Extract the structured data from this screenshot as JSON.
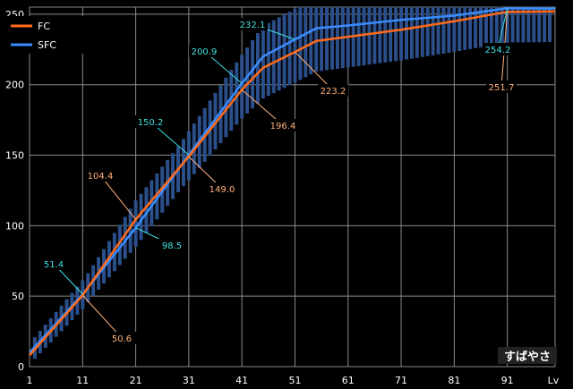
{
  "chart_data": {
    "type": "line",
    "xlim": [
      1,
      100
    ],
    "ylim": [
      0,
      255
    ],
    "xticks": [
      1,
      11,
      21,
      31,
      41,
      51,
      61,
      71,
      81,
      91
    ],
    "xtick_last_label": "Lv",
    "yticks": [
      0,
      50,
      100,
      150,
      200,
      250
    ],
    "grid": true,
    "legend_position": "top-left",
    "colors": {
      "background": "#000000",
      "grid": "#8a8a8a",
      "fc": "#ff6a1a",
      "sfc": "#3a8cff",
      "bars": "#2b4f8a",
      "fc_label": "#ffb07a",
      "sfc_label": "#40e0e0"
    },
    "series": [
      {
        "name": "FC",
        "x": [
          1,
          11,
          21,
          31,
          41,
          45,
          51,
          55,
          61,
          71,
          81,
          91,
          100
        ],
        "y": [
          8,
          50.6,
          104.4,
          149.0,
          196.4,
          212,
          223.2,
          231,
          234,
          239,
          245,
          251.7,
          252
        ]
      },
      {
        "name": "SFC",
        "x": [
          1,
          11,
          21,
          31,
          41,
          45,
          51,
          55,
          61,
          71,
          81,
          91,
          100
        ],
        "y": [
          10,
          51.4,
          98.5,
          150.2,
          200.9,
          220,
          232.1,
          240,
          242,
          246,
          249,
          254.2,
          254
        ]
      }
    ],
    "annotations": [
      {
        "text": "51.4",
        "series": "SFC"
      },
      {
        "text": "50.6",
        "series": "FC"
      },
      {
        "text": "104.4",
        "series": "FC"
      },
      {
        "text": "98.5",
        "series": "SFC"
      },
      {
        "text": "150.2",
        "series": "SFC"
      },
      {
        "text": "149.0",
        "series": "FC"
      },
      {
        "text": "200.9",
        "series": "SFC"
      },
      {
        "text": "196.4",
        "series": "FC"
      },
      {
        "text": "232.1",
        "series": "SFC"
      },
      {
        "text": "223.2",
        "series": "FC"
      },
      {
        "text": "254.2",
        "series": "SFC"
      },
      {
        "text": "251.7",
        "series": "FC"
      }
    ],
    "watermark": "すばやさ"
  }
}
